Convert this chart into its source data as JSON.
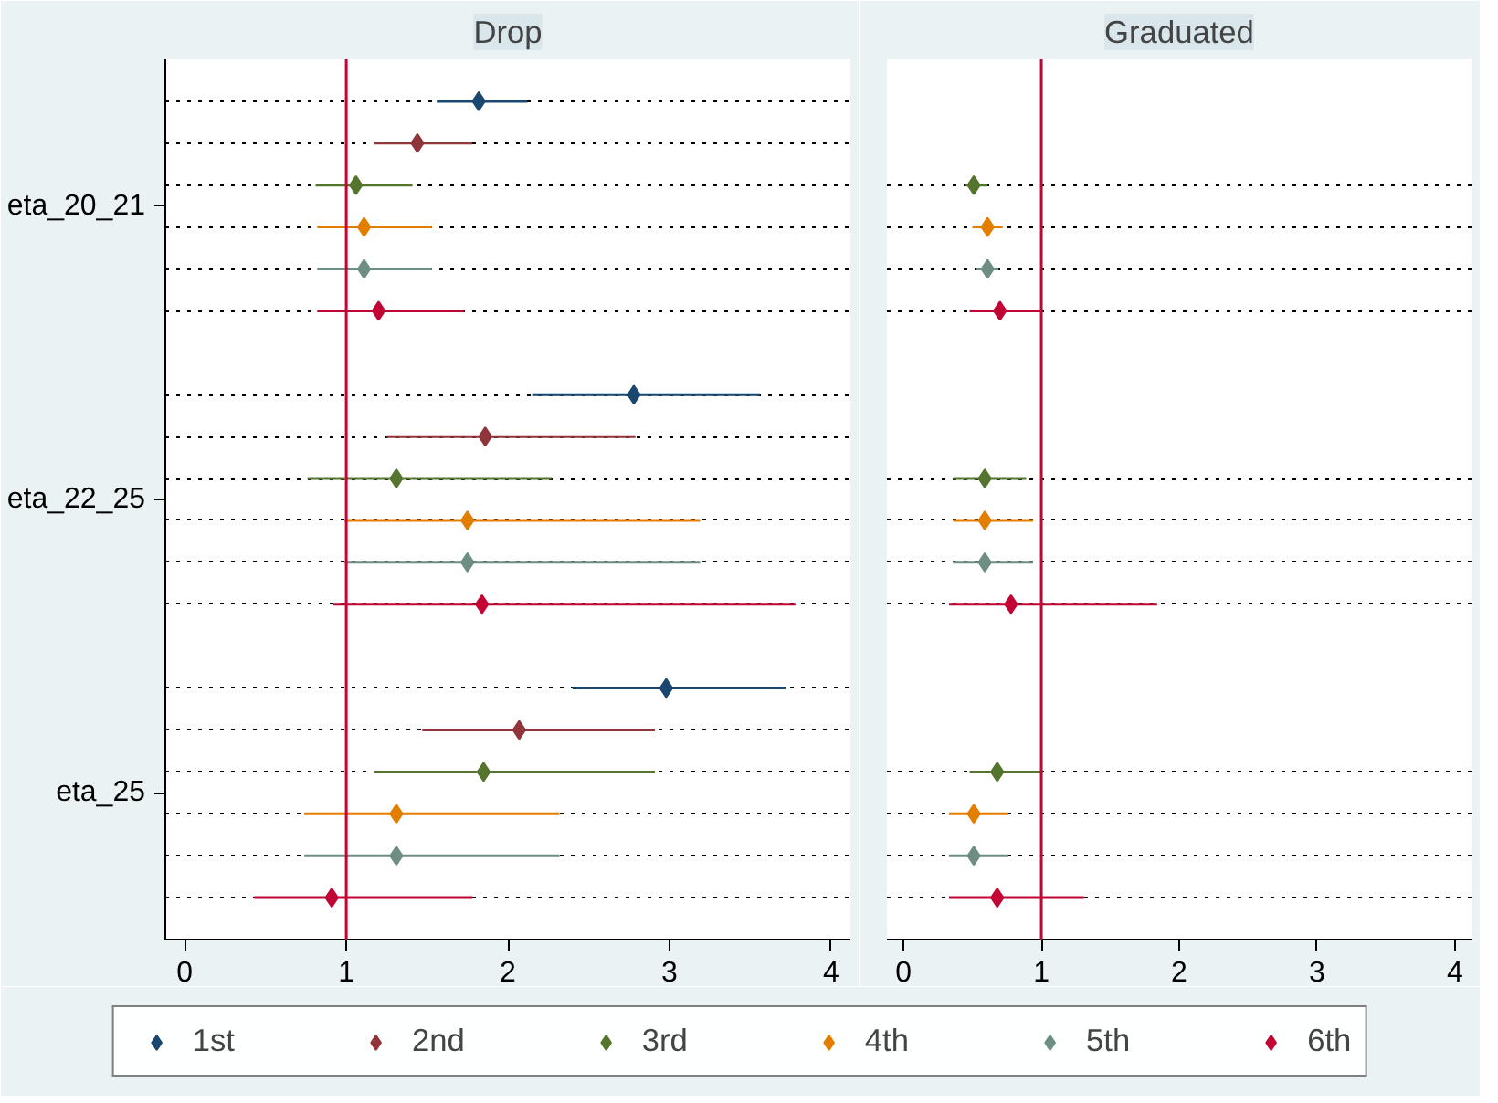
{
  "chart_data": [
    {
      "type": "scatter",
      "orientation": "horizontal",
      "title": "Drop",
      "categories": [
        "eta_20_21",
        "eta_22_25",
        "eta_25"
      ],
      "xlim": [
        -0.12,
        4.12
      ],
      "xticks": [
        0,
        1,
        2,
        3,
        4
      ],
      "marker": "diamond",
      "grid": "y",
      "legend": "bottom",
      "ref_lines": [
        {
          "axis": "x",
          "value": 1,
          "color": "#c10534"
        }
      ],
      "series": [
        {
          "name": "1st",
          "color": "#1a476f",
          "values": [
            1.82,
            2.78,
            2.98
          ],
          "errors": [
            [
              1.56,
              2.12
            ],
            [
              2.15,
              3.56
            ],
            [
              2.4,
              3.72
            ]
          ]
        },
        {
          "name": "2nd",
          "color": "#90353b",
          "values": [
            1.44,
            1.86,
            2.07
          ],
          "errors": [
            [
              1.17,
              1.78
            ],
            [
              1.25,
              2.79
            ],
            [
              1.47,
              2.91
            ]
          ]
        },
        {
          "name": "3rd",
          "color": "#55752f",
          "values": [
            1.06,
            1.31,
            1.85
          ],
          "errors": [
            [
              0.81,
              1.41
            ],
            [
              0.76,
              2.27
            ],
            [
              1.17,
              2.91
            ]
          ]
        },
        {
          "name": "4th",
          "color": "#e37e00",
          "values": [
            1.11,
            1.75,
            1.31
          ],
          "errors": [
            [
              0.82,
              1.53
            ],
            [
              0.99,
              3.19
            ],
            [
              0.74,
              2.32
            ]
          ]
        },
        {
          "name": "5th",
          "color": "#6e8e84",
          "values": [
            1.11,
            1.75,
            1.31
          ],
          "errors": [
            [
              0.82,
              1.53
            ],
            [
              0.99,
              3.19
            ],
            [
              0.74,
              2.32
            ]
          ]
        },
        {
          "name": "6th",
          "color": "#c10534",
          "values": [
            1.2,
            1.84,
            0.91
          ],
          "errors": [
            [
              0.82,
              1.73
            ],
            [
              0.92,
              3.78
            ],
            [
              0.43,
              1.78
            ]
          ]
        }
      ]
    },
    {
      "type": "scatter",
      "orientation": "horizontal",
      "title": "Graduated",
      "categories": [
        null,
        null,
        null
      ],
      "xlim": [
        -0.12,
        4.12
      ],
      "xticks": [
        0,
        1,
        2,
        3,
        4
      ],
      "marker": "diamond",
      "grid": "y",
      "tick_labels": "x",
      "ref_lines": [
        {
          "axis": "x",
          "value": 1,
          "color": "#c10534"
        }
      ],
      "series": [
        {
          "color": "#1a476f",
          "values": [
            null,
            null,
            null
          ],
          "errors": [
            null,
            null,
            null
          ]
        },
        {
          "color": "#90353b",
          "values": [
            null,
            null,
            null
          ],
          "errors": [
            null,
            null,
            null
          ]
        },
        {
          "color": "#55752f",
          "values": [
            0.51,
            0.59,
            0.68
          ],
          "errors": [
            [
              0.45,
              0.61
            ],
            [
              0.36,
              0.89
            ],
            [
              0.48,
              1.01
            ]
          ]
        },
        {
          "color": "#e37e00",
          "values": [
            0.61,
            0.59,
            0.51
          ],
          "errors": [
            [
              0.5,
              0.72
            ],
            [
              0.36,
              0.94
            ],
            [
              0.33,
              0.76
            ]
          ]
        },
        {
          "color": "#6e8e84",
          "values": [
            0.61,
            0.59,
            0.51
          ],
          "errors": [
            [
              0.53,
              0.69
            ],
            [
              0.36,
              0.94
            ],
            [
              0.33,
              0.76
            ]
          ]
        },
        {
          "color": "#c10534",
          "values": [
            0.7,
            0.78,
            0.68
          ],
          "errors": [
            [
              0.48,
              1.01
            ],
            [
              0.33,
              1.84
            ],
            [
              0.33,
              1.31
            ]
          ]
        }
      ]
    }
  ]
}
